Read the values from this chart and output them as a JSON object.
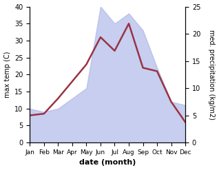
{
  "months": [
    "Jan",
    "Feb",
    "Mar",
    "Apr",
    "May",
    "Jun",
    "Jul",
    "Aug",
    "Sep",
    "Oct",
    "Nov",
    "Dec"
  ],
  "max_temp": [
    8,
    8.5,
    13,
    18,
    23,
    31,
    27,
    35,
    22,
    21,
    12,
    6
  ],
  "precipitation": [
    10,
    9,
    10,
    13,
    16,
    40,
    35,
    38,
    33,
    22,
    12,
    11
  ],
  "temp_ylim": [
    0,
    40
  ],
  "precip_ylim": [
    0,
    25
  ],
  "fill_color": "#aab4e8",
  "fill_alpha": 0.65,
  "line_color": "#993344",
  "line_width": 1.8,
  "xlabel": "date (month)",
  "ylabel_left": "max temp (C)",
  "ylabel_right": "med. precipitation (kg/m2)",
  "bg_color": "#ffffff",
  "tick_fontsize": 7,
  "label_fontsize": 7,
  "xlabel_fontsize": 8
}
